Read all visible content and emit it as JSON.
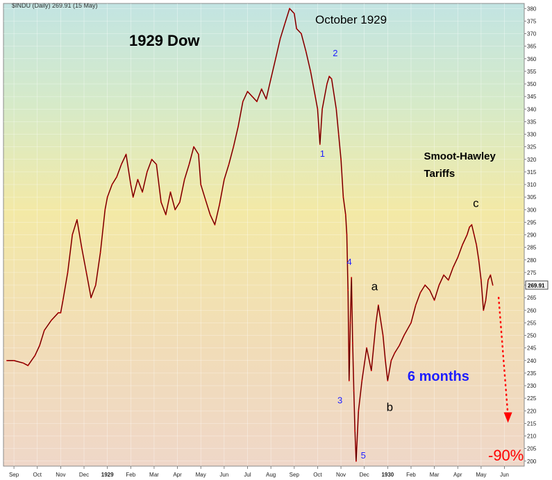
{
  "chart_data": {
    "type": "line",
    "header": "$INDU (Daily) 269.91 (15 May)",
    "title": "1929 Dow",
    "last_value_label": "269.91",
    "ylim": [
      198,
      382
    ],
    "y_ticks": [
      200,
      205,
      210,
      215,
      220,
      225,
      230,
      235,
      240,
      245,
      250,
      255,
      260,
      265,
      270,
      275,
      280,
      285,
      290,
      295,
      300,
      305,
      310,
      315,
      320,
      325,
      330,
      335,
      340,
      345,
      350,
      355,
      360,
      365,
      370,
      375,
      380
    ],
    "x_ticks": [
      {
        "label": "Sep",
        "x": 0.0,
        "bold": false
      },
      {
        "label": "Oct",
        "x": 1.0,
        "bold": false
      },
      {
        "label": "Nov",
        "x": 2.0,
        "bold": false
      },
      {
        "label": "Dec",
        "x": 3.0,
        "bold": false
      },
      {
        "label": "1929",
        "x": 4.0,
        "bold": true
      },
      {
        "label": "Feb",
        "x": 5.0,
        "bold": false
      },
      {
        "label": "Mar",
        "x": 6.0,
        "bold": false
      },
      {
        "label": "Apr",
        "x": 7.0,
        "bold": false
      },
      {
        "label": "May",
        "x": 8.0,
        "bold": false
      },
      {
        "label": "Jun",
        "x": 9.0,
        "bold": false
      },
      {
        "label": "Jul",
        "x": 10.0,
        "bold": false
      },
      {
        "label": "Aug",
        "x": 11.0,
        "bold": false
      },
      {
        "label": "Sep",
        "x": 12.0,
        "bold": false
      },
      {
        "label": "Oct",
        "x": 13.0,
        "bold": false
      },
      {
        "label": "Nov",
        "x": 14.0,
        "bold": false
      },
      {
        "label": "Dec",
        "x": 15.0,
        "bold": false
      },
      {
        "label": "1930",
        "x": 16.0,
        "bold": true
      },
      {
        "label": "Feb",
        "x": 17.0,
        "bold": false
      },
      {
        "label": "Mar",
        "x": 18.0,
        "bold": false
      },
      {
        "label": "Apr",
        "x": 19.0,
        "bold": false
      },
      {
        "label": "May",
        "x": 20.0,
        "bold": false
      },
      {
        "label": "Jun",
        "x": 21.0,
        "bold": false
      }
    ],
    "x_unit": "months since Sep 1928",
    "xlim": [
      -0.3,
      21.4
    ],
    "series": [
      {
        "name": "$INDU Daily",
        "color": "#cc0000",
        "points": [
          [
            -0.3,
            240
          ],
          [
            0.0,
            240
          ],
          [
            0.4,
            239
          ],
          [
            0.6,
            238
          ],
          [
            0.9,
            242
          ],
          [
            1.1,
            246
          ],
          [
            1.3,
            252
          ],
          [
            1.6,
            256
          ],
          [
            1.9,
            259
          ],
          [
            2.0,
            259
          ],
          [
            2.1,
            264
          ],
          [
            2.3,
            275
          ],
          [
            2.5,
            290
          ],
          [
            2.7,
            296
          ],
          [
            2.9,
            285
          ],
          [
            3.1,
            275
          ],
          [
            3.3,
            265
          ],
          [
            3.5,
            270
          ],
          [
            3.7,
            283
          ],
          [
            3.9,
            300
          ],
          [
            4.0,
            305
          ],
          [
            4.2,
            310
          ],
          [
            4.4,
            313
          ],
          [
            4.6,
            318
          ],
          [
            4.8,
            322
          ],
          [
            5.0,
            310
          ],
          [
            5.1,
            305
          ],
          [
            5.3,
            312
          ],
          [
            5.5,
            307
          ],
          [
            5.7,
            315
          ],
          [
            5.9,
            320
          ],
          [
            6.1,
            318
          ],
          [
            6.3,
            303
          ],
          [
            6.5,
            298
          ],
          [
            6.7,
            307
          ],
          [
            6.9,
            300
          ],
          [
            7.1,
            303
          ],
          [
            7.3,
            312
          ],
          [
            7.5,
            318
          ],
          [
            7.7,
            325
          ],
          [
            7.9,
            322
          ],
          [
            8.0,
            310
          ],
          [
            8.2,
            304
          ],
          [
            8.4,
            298
          ],
          [
            8.6,
            294
          ],
          [
            8.8,
            302
          ],
          [
            9.0,
            312
          ],
          [
            9.2,
            318
          ],
          [
            9.4,
            325
          ],
          [
            9.6,
            333
          ],
          [
            9.8,
            343
          ],
          [
            10.0,
            347
          ],
          [
            10.2,
            345
          ],
          [
            10.4,
            343
          ],
          [
            10.6,
            348
          ],
          [
            10.8,
            344
          ],
          [
            11.0,
            352
          ],
          [
            11.2,
            360
          ],
          [
            11.4,
            368
          ],
          [
            11.6,
            374
          ],
          [
            11.8,
            380
          ],
          [
            12.0,
            378
          ],
          [
            12.1,
            372
          ],
          [
            12.3,
            370
          ],
          [
            12.5,
            363
          ],
          [
            12.7,
            355
          ],
          [
            12.9,
            345
          ],
          [
            13.0,
            340
          ],
          [
            13.1,
            326
          ],
          [
            13.2,
            340
          ],
          [
            13.4,
            350
          ],
          [
            13.5,
            353
          ],
          [
            13.6,
            352
          ],
          [
            13.8,
            340
          ],
          [
            13.9,
            330
          ],
          [
            14.0,
            320
          ],
          [
            14.1,
            305
          ],
          [
            14.2,
            298
          ],
          [
            14.25,
            290
          ],
          [
            14.3,
            268
          ],
          [
            14.35,
            232
          ],
          [
            14.4,
            255
          ],
          [
            14.45,
            273
          ],
          [
            14.5,
            247
          ],
          [
            14.55,
            228
          ],
          [
            14.6,
            212
          ],
          [
            14.65,
            200
          ],
          [
            14.75,
            220
          ],
          [
            14.9,
            232
          ],
          [
            15.1,
            245
          ],
          [
            15.3,
            236
          ],
          [
            15.5,
            255
          ],
          [
            15.6,
            262
          ],
          [
            15.8,
            250
          ],
          [
            15.9,
            240
          ],
          [
            16.0,
            232
          ],
          [
            16.15,
            240
          ],
          [
            16.3,
            243
          ],
          [
            16.5,
            246
          ],
          [
            16.7,
            250
          ],
          [
            17.0,
            255
          ],
          [
            17.2,
            262
          ],
          [
            17.4,
            267
          ],
          [
            17.6,
            270
          ],
          [
            17.8,
            268
          ],
          [
            18.0,
            264
          ],
          [
            18.2,
            270
          ],
          [
            18.4,
            274
          ],
          [
            18.6,
            272
          ],
          [
            18.8,
            277
          ],
          [
            19.0,
            281
          ],
          [
            19.2,
            286
          ],
          [
            19.4,
            290
          ],
          [
            19.5,
            293
          ],
          [
            19.6,
            294
          ],
          [
            19.7,
            290
          ],
          [
            19.8,
            286
          ],
          [
            19.9,
            280
          ],
          [
            20.0,
            272
          ],
          [
            20.1,
            260
          ],
          [
            20.2,
            264
          ],
          [
            20.3,
            272
          ],
          [
            20.4,
            274
          ],
          [
            20.5,
            270
          ]
        ]
      }
    ],
    "projection": {
      "from": [
        20.75,
        265
      ],
      "to": [
        21.15,
        218
      ],
      "label": "-90%",
      "color": "#ff0000"
    },
    "annotations": [
      {
        "text": "October 1929",
        "x": 12.9,
        "y": 374,
        "color": "#000000",
        "size": 17,
        "weight": "normal"
      },
      {
        "text": "2",
        "x": 13.65,
        "y": 361,
        "color": "#1e1eff",
        "size": 13,
        "weight": "normal"
      },
      {
        "text": "1",
        "x": 13.1,
        "y": 321,
        "color": "#1e1eff",
        "size": 13,
        "weight": "normal"
      },
      {
        "text": "4",
        "x": 14.25,
        "y": 278,
        "color": "#1e1eff",
        "size": 13,
        "weight": "normal"
      },
      {
        "text": "3",
        "x": 13.85,
        "y": 223,
        "color": "#1e1eff",
        "size": 13,
        "weight": "normal"
      },
      {
        "text": "5",
        "x": 14.85,
        "y": 201,
        "color": "#1e1eff",
        "size": 13,
        "weight": "normal"
      },
      {
        "text": "a",
        "x": 15.3,
        "y": 268,
        "color": "#000000",
        "size": 17,
        "weight": "normal"
      },
      {
        "text": "b",
        "x": 15.95,
        "y": 220,
        "color": "#000000",
        "size": 17,
        "weight": "normal"
      },
      {
        "text": "c",
        "x": 19.65,
        "y": 301,
        "color": "#000000",
        "size": 17,
        "weight": "normal"
      },
      {
        "text": "Smoot-Hawley",
        "x": 17.55,
        "y": 320,
        "color": "#000000",
        "size": 15,
        "weight": "bold"
      },
      {
        "text": "Tariffs",
        "x": 17.55,
        "y": 313,
        "color": "#000000",
        "size": 15,
        "weight": "bold"
      },
      {
        "text": "6 months",
        "x": 16.85,
        "y": 232,
        "color": "#1e1eff",
        "size": 20,
        "weight": "bold"
      }
    ],
    "grid": true
  }
}
